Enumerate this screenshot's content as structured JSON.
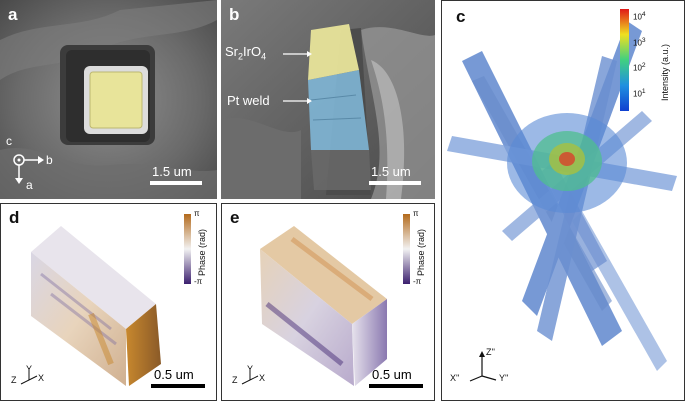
{
  "panels": {
    "a": {
      "label": "a",
      "scalebar": "1.5 um",
      "axes": {
        "c": "c",
        "b": "b",
        "a": "a"
      }
    },
    "b": {
      "label": "b",
      "scalebar": "1.5 um",
      "annot_material_base": "Sr",
      "annot_material_sub1": "2",
      "annot_material_mid": "IrO",
      "annot_material_sub2": "4",
      "annot_weld": "Pt weld"
    },
    "c": {
      "label": "c",
      "colorbar_title": "Intensity (a.u.)",
      "ticks": {
        "t4": {
          "base": "10",
          "exp": "4"
        },
        "t3": {
          "base": "10",
          "exp": "3"
        },
        "t2": {
          "base": "10",
          "exp": "2"
        },
        "t1": {
          "base": "10",
          "exp": "1"
        }
      },
      "axes": {
        "z": "Z''",
        "x": "X''",
        "y": "Y''"
      }
    },
    "d": {
      "label": "d",
      "colorbar_title": "Phase (rad)",
      "tick_top": "π",
      "tick_bottom": "-π",
      "scalebar": "0.5 um",
      "axes": {
        "z": "Z",
        "y": "Y",
        "x": "X"
      }
    },
    "e": {
      "label": "e",
      "colorbar_title": "Phase (rad)",
      "tick_top": "π",
      "tick_bottom": "-π",
      "scalebar": "0.5 um",
      "axes": {
        "z": "Z",
        "y": "Y",
        "x": "X"
      }
    }
  },
  "colors": {
    "sem_dark": "#3e3e3e",
    "sem_light": "#9a9a9a",
    "crystal_yellow": "#e8e49a",
    "weld_blue": "#7fb6d6",
    "phase_orange": "#c8782a",
    "phase_purple": "#3b1f6e"
  }
}
